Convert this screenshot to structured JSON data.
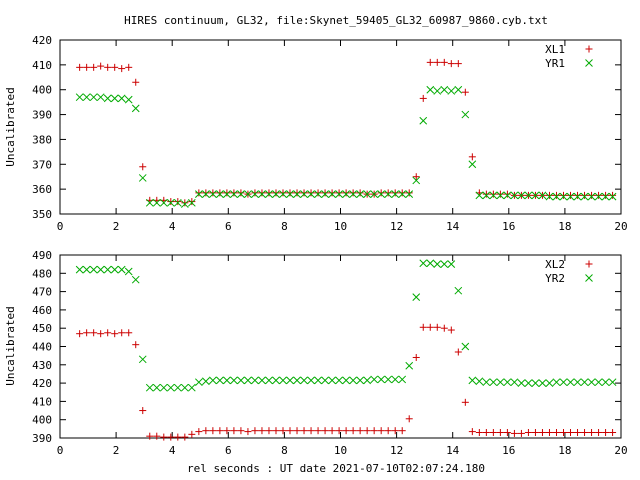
{
  "chart_data": [
    {
      "type": "scatter",
      "title": "HIRES continuum, GL32, file:Skynet_59405_GL32_60987_9860.cyb.txt",
      "xlabel": "",
      "ylabel": "Uncalibrated",
      "xlim": [
        0,
        20
      ],
      "ylim": [
        350,
        420
      ],
      "xticks": [
        0,
        2,
        4,
        6,
        8,
        10,
        12,
        14,
        16,
        18,
        20
      ],
      "yticks": [
        350,
        360,
        370,
        380,
        390,
        400,
        410,
        420
      ],
      "grid": false,
      "legend_position": "top-right",
      "x": [
        0.7,
        0.95,
        1.2,
        1.45,
        1.7,
        1.95,
        2.2,
        2.45,
        2.7,
        2.95,
        3.2,
        3.45,
        3.7,
        3.95,
        4.2,
        4.45,
        4.7,
        4.95,
        5.2,
        5.45,
        5.7,
        5.95,
        6.2,
        6.45,
        6.7,
        6.95,
        7.2,
        7.45,
        7.7,
        7.95,
        8.2,
        8.45,
        8.7,
        8.95,
        9.2,
        9.45,
        9.7,
        9.95,
        10.2,
        10.45,
        10.7,
        10.95,
        11.2,
        11.45,
        11.7,
        11.95,
        12.2,
        12.45,
        12.7,
        12.95,
        13.2,
        13.45,
        13.7,
        13.95,
        14.2,
        14.45,
        14.7,
        14.95,
        15.2,
        15.45,
        15.7,
        15.95,
        16.2,
        16.45,
        16.7,
        16.95,
        17.2,
        17.45,
        17.7,
        17.95,
        18.2,
        18.45,
        18.7,
        18.95,
        19.2,
        19.45,
        19.7
      ],
      "series": [
        {
          "name": "XL1",
          "marker": "plus",
          "color": "#cc0000",
          "values": [
            409,
            409,
            409,
            409.5,
            409,
            409,
            408.5,
            409,
            403,
            369,
            355.5,
            355.5,
            355.5,
            355,
            355,
            354.5,
            355,
            358.5,
            358.5,
            358.5,
            358.5,
            358.5,
            358.5,
            358.5,
            358,
            358.5,
            358.5,
            358.5,
            358.5,
            358.5,
            358.5,
            358.5,
            358.5,
            358.5,
            358.5,
            358.5,
            358.5,
            358.5,
            358.5,
            358.5,
            358.5,
            358,
            358,
            358.5,
            358.5,
            358.5,
            358.5,
            358.5,
            365,
            396.5,
            411,
            411,
            411,
            410.5,
            410.5,
            399,
            373,
            358.5,
            358,
            358,
            358,
            358,
            357.5,
            357.5,
            357.5,
            357.5,
            357.5,
            357.5,
            357.5,
            357.5,
            357.5,
            357.5,
            357.5,
            357.5,
            357.5,
            357.5,
            357.5
          ]
        },
        {
          "name": "YR1",
          "marker": "cross",
          "color": "#00aa00",
          "values": [
            397,
            397,
            397,
            397,
            396.5,
            396.5,
            396.5,
            396,
            392.5,
            364.5,
            354.5,
            354.5,
            354.5,
            354.5,
            354.5,
            354,
            354.5,
            358,
            358,
            358,
            358,
            358,
            358,
            358,
            358,
            358,
            358,
            358,
            358,
            358,
            358,
            358,
            358,
            358,
            358,
            358,
            358,
            358,
            358,
            358,
            358,
            358,
            358,
            358,
            358,
            358,
            358,
            358,
            363.5,
            387.5,
            400,
            399.5,
            400,
            399.5,
            400,
            390,
            370,
            357.5,
            357.5,
            357.5,
            357.5,
            357.5,
            357.5,
            357.5,
            357.5,
            357.5,
            357.5,
            357,
            357,
            357,
            357,
            357,
            357,
            357,
            357,
            357,
            357
          ]
        }
      ]
    },
    {
      "type": "scatter",
      "title": "",
      "xlabel": "rel seconds : UT date 2021-07-10T02:07:24.180",
      "ylabel": "Uncalibrated",
      "xlim": [
        0,
        20
      ],
      "ylim": [
        390,
        490
      ],
      "xticks": [
        0,
        2,
        4,
        6,
        8,
        10,
        12,
        14,
        16,
        18,
        20
      ],
      "yticks": [
        390,
        400,
        410,
        420,
        430,
        440,
        450,
        460,
        470,
        480,
        490
      ],
      "grid": false,
      "legend_position": "top-right",
      "x": [
        0.7,
        0.95,
        1.2,
        1.45,
        1.7,
        1.95,
        2.2,
        2.45,
        2.7,
        2.95,
        3.2,
        3.45,
        3.7,
        3.95,
        4.2,
        4.45,
        4.7,
        4.95,
        5.2,
        5.45,
        5.7,
        5.95,
        6.2,
        6.45,
        6.7,
        6.95,
        7.2,
        7.45,
        7.7,
        7.95,
        8.2,
        8.45,
        8.7,
        8.95,
        9.2,
        9.45,
        9.7,
        9.95,
        10.2,
        10.45,
        10.7,
        10.95,
        11.2,
        11.45,
        11.7,
        11.95,
        12.2,
        12.45,
        12.7,
        12.95,
        13.2,
        13.45,
        13.7,
        13.95,
        14.2,
        14.45,
        14.7,
        14.95,
        15.2,
        15.45,
        15.7,
        15.95,
        16.2,
        16.45,
        16.7,
        16.95,
        17.2,
        17.45,
        17.7,
        17.95,
        18.2,
        18.45,
        18.7,
        18.95,
        19.2,
        19.45,
        19.7
      ],
      "series": [
        {
          "name": "XL2",
          "marker": "plus",
          "color": "#cc0000",
          "values": [
            447,
            447.5,
            447.5,
            447,
            447.5,
            447,
            447.5,
            447.5,
            441,
            405,
            391,
            391,
            390.5,
            390.5,
            390.5,
            390.5,
            392,
            393.5,
            394,
            394,
            394,
            394,
            394,
            394,
            393.5,
            394,
            394,
            394,
            394,
            394,
            394,
            394,
            394,
            394,
            394,
            394,
            394,
            394,
            394,
            394,
            394,
            394,
            394,
            394,
            394,
            394,
            394,
            400.5,
            434,
            450.5,
            450.5,
            450.5,
            450,
            449,
            437,
            409.5,
            393.5,
            393,
            393,
            393,
            393,
            393,
            392.5,
            392.5,
            393,
            393,
            393,
            393,
            393,
            393,
            393,
            393,
            393,
            393,
            393,
            393,
            393
          ]
        },
        {
          "name": "YR2",
          "marker": "cross",
          "color": "#00aa00",
          "values": [
            482,
            482,
            482,
            482,
            482,
            482,
            482,
            481,
            476.5,
            433,
            417.5,
            417.5,
            417.5,
            417.5,
            417.5,
            417.5,
            417.5,
            420.5,
            421,
            421.5,
            421.5,
            421.5,
            421.5,
            421.5,
            421.5,
            421.5,
            421.5,
            421.5,
            421.5,
            421.5,
            421.5,
            421.5,
            421.5,
            421.5,
            421.5,
            421.5,
            421.5,
            421.5,
            421.5,
            421.5,
            421.5,
            421.5,
            422,
            422,
            422,
            422,
            422,
            429.5,
            467,
            485.5,
            485.5,
            485,
            485,
            485,
            470.5,
            440,
            421.5,
            421,
            420.5,
            420.5,
            420.5,
            420.5,
            420.5,
            420,
            420,
            420,
            420,
            420,
            420.5,
            420.5,
            420.5,
            420.5,
            420.5,
            420.5,
            420.5,
            420.5,
            420.5
          ]
        }
      ]
    }
  ]
}
